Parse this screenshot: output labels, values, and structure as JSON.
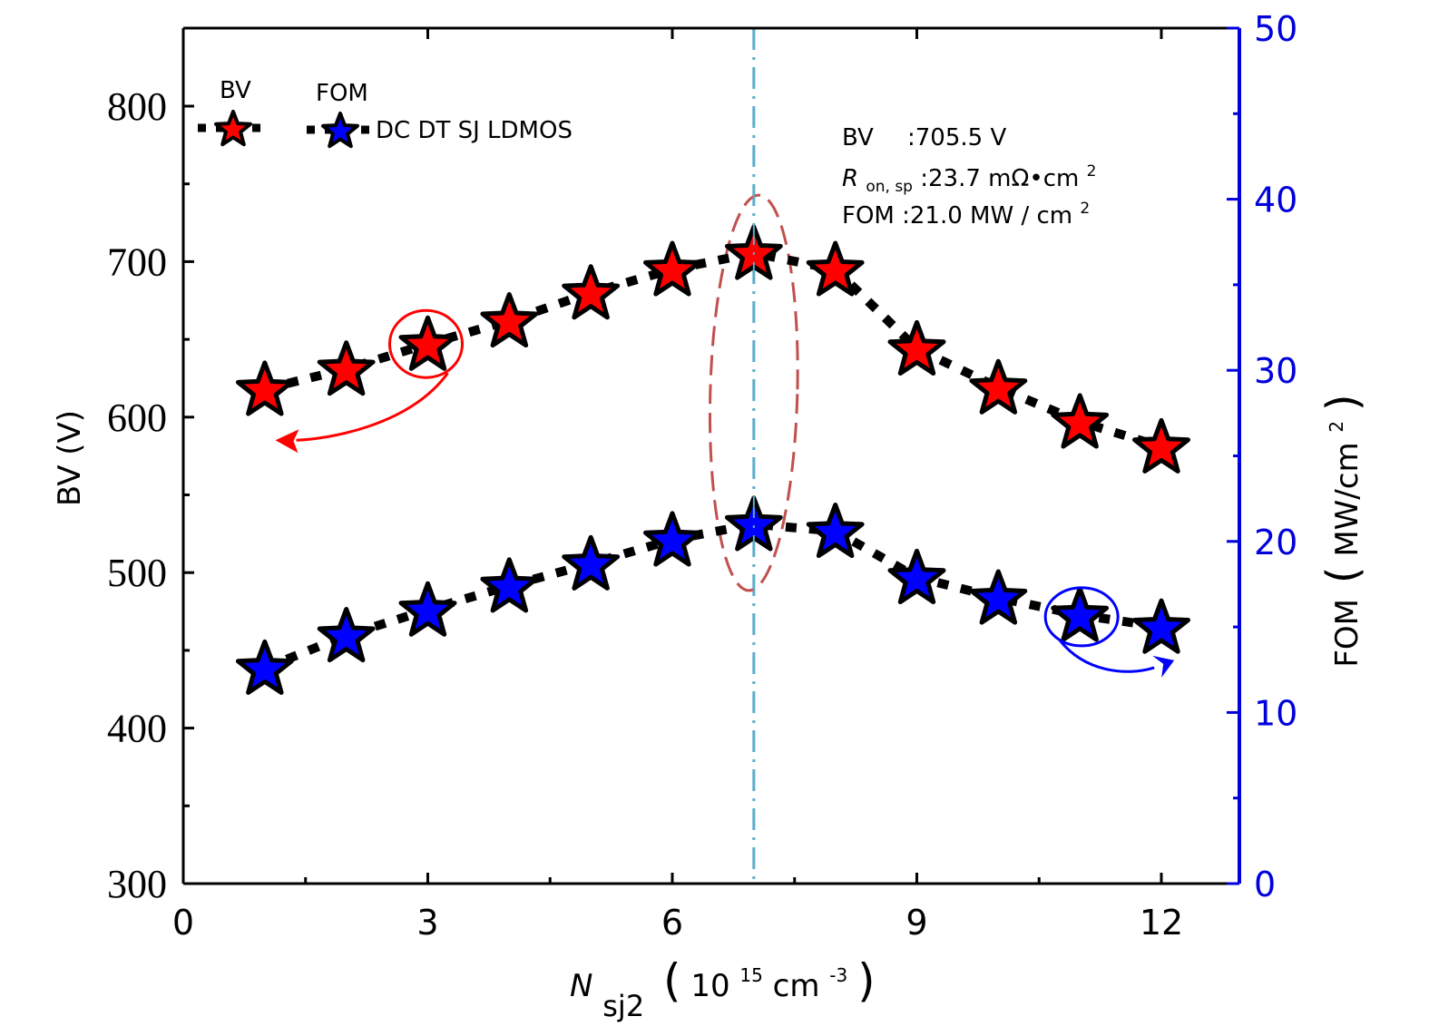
{
  "chart_data": {
    "type": "line",
    "title": "",
    "xlabel": {
      "main": "N",
      "sub": "sj2",
      "unit_base": "10",
      "unit_exp": "15",
      "unit_rest": "cm",
      "unit_rest_exp": "-3"
    },
    "ylabel_left": "BV (V)",
    "ylabel_right": {
      "main": "FOM",
      "unit": "MW/cm",
      "unit_exp": "2"
    },
    "xlim": [
      0,
      13
    ],
    "ylim_left": [
      300,
      850
    ],
    "ylim_right": [
      0,
      50
    ],
    "x_ticks": [
      0,
      3,
      6,
      9,
      12
    ],
    "x_tick_labels": [
      "0",
      "3",
      "6",
      "9",
      "12"
    ],
    "y_left_ticks": [
      300,
      400,
      500,
      600,
      700,
      800
    ],
    "y_left_tick_labels": [
      "300",
      "400",
      "500",
      "600",
      "700",
      "800"
    ],
    "y_right_ticks": [
      0,
      10,
      20,
      30,
      40,
      50
    ],
    "y_right_tick_labels": [
      "0",
      "10",
      "20",
      "30",
      "40",
      "50"
    ],
    "grid": false,
    "x": [
      1,
      2,
      3,
      4,
      5,
      6,
      7,
      8,
      9,
      10,
      11,
      12
    ],
    "series": [
      {
        "name": "BV",
        "axis": "left",
        "marker": "star",
        "color": "#ff0000",
        "line_style": "dotted-thick",
        "values": [
          618,
          631,
          647,
          662,
          680,
          695,
          705.5,
          695,
          644,
          619,
          597,
          581
        ]
      },
      {
        "name": "FOM",
        "axis": "right",
        "marker": "star",
        "color": "#0000ff",
        "line_style": "dotted-thick",
        "values": [
          12.6,
          14.5,
          16.0,
          17.4,
          18.7,
          20.1,
          21.0,
          20.6,
          17.9,
          16.7,
          15.7,
          15.0
        ]
      }
    ],
    "legend": {
      "placement": "top-left",
      "entries": [
        "BV",
        "FOM"
      ],
      "device_label": "DC DT SJ LDMOS"
    },
    "annotations": {
      "optimum_x": 7,
      "optimum_line_color": "#5aaccc",
      "highlight_ellipse_color": "#c0504d",
      "bv_callout_color": "#ff0000",
      "bv_callout_x": 3,
      "fom_callout_color": "#0000ff",
      "fom_callout_x": 11,
      "right_axis_color": "#0000dd",
      "text_lines": [
        {
          "label": "BV",
          "value": ":705.5 V"
        },
        {
          "label": "R",
          "label_sub": "on,  sp",
          "value": ":23.7 mΩ•cm",
          "value_exp": "2"
        },
        {
          "label": "FOM",
          "value": " :21.0 MW / cm ",
          "value_exp": "2"
        }
      ]
    }
  }
}
